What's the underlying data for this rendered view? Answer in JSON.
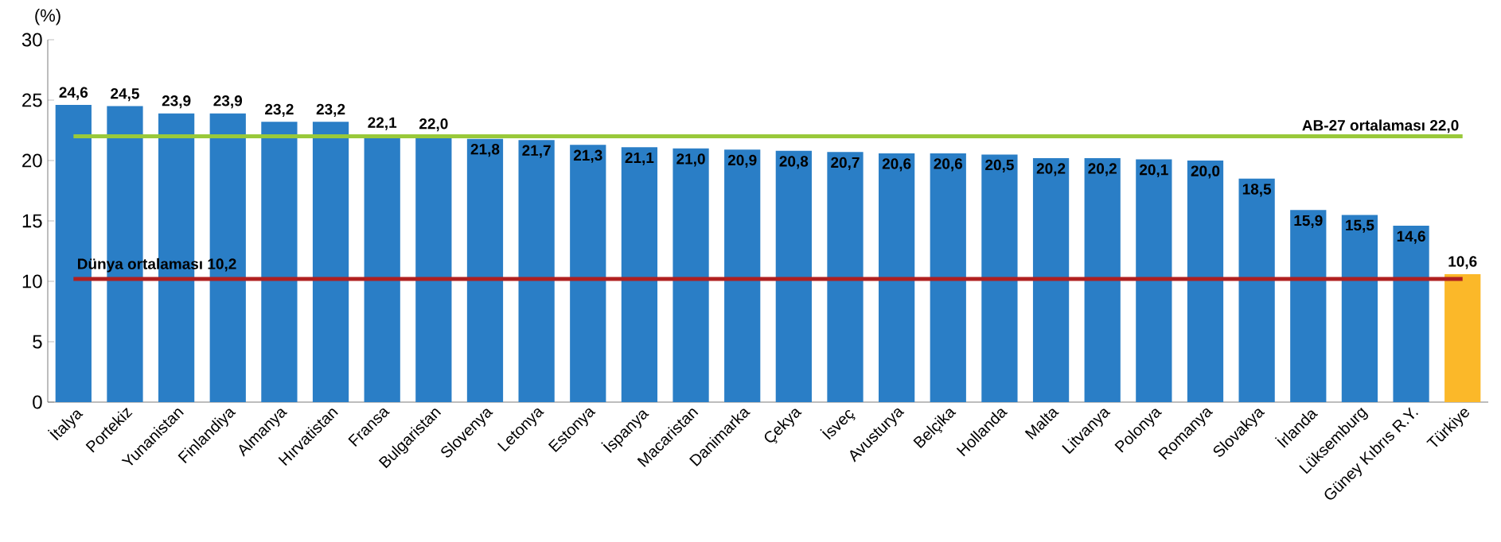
{
  "chart_data": {
    "type": "bar",
    "ylabel": "(%)",
    "categories": [
      "İtalya",
      "Portekiz",
      "Yunanistan",
      "Finlandiya",
      "Almanya",
      "Hırvatistan",
      "Fransa",
      "Bulgaristan",
      "Slovenya",
      "Letonya",
      "Estonya",
      "İspanya",
      "Macaristan",
      "Danimarka",
      "Çekya",
      "İsveç",
      "Avusturya",
      "Belçika",
      "Hollanda",
      "Malta",
      "Litvanya",
      "Polonya",
      "Romanya",
      "Slovakya",
      "İrlanda",
      "Lüksemburg",
      "Güney Kıbrıs R.Y.",
      "Türkiye"
    ],
    "values": [
      24.6,
      24.5,
      23.9,
      23.9,
      23.2,
      23.2,
      22.1,
      22.0,
      21.8,
      21.7,
      21.3,
      21.1,
      21.0,
      20.9,
      20.8,
      20.7,
      20.6,
      20.6,
      20.5,
      20.2,
      20.2,
      20.1,
      20.0,
      18.5,
      15.9,
      15.5,
      14.6,
      10.6
    ],
    "value_labels": [
      "24,6",
      "24,5",
      "23,9",
      "23,9",
      "23,2",
      "23,2",
      "22,1",
      "22,0",
      "21,8",
      "21,7",
      "21,3",
      "21,1",
      "21,0",
      "20,9",
      "20,8",
      "20,7",
      "20,6",
      "20,6",
      "20,5",
      "20,2",
      "20,2",
      "20,1",
      "20,0",
      "18,5",
      "15,9",
      "15,5",
      "14,6",
      "10,6"
    ],
    "colors": [
      "#2a7ec6",
      "#2a7ec6",
      "#2a7ec6",
      "#2a7ec6",
      "#2a7ec6",
      "#2a7ec6",
      "#2a7ec6",
      "#2a7ec6",
      "#2a7ec6",
      "#2a7ec6",
      "#2a7ec6",
      "#2a7ec6",
      "#2a7ec6",
      "#2a7ec6",
      "#2a7ec6",
      "#2a7ec6",
      "#2a7ec6",
      "#2a7ec6",
      "#2a7ec6",
      "#2a7ec6",
      "#2a7ec6",
      "#2a7ec6",
      "#2a7ec6",
      "#2a7ec6",
      "#2a7ec6",
      "#2a7ec6",
      "#2a7ec6",
      "#fbb829"
    ],
    "ylim": [
      0,
      30
    ],
    "yticks": [
      0,
      5,
      10,
      15,
      20,
      25,
      30
    ],
    "ref_lines": [
      {
        "axis": "y",
        "value": 22.0,
        "label": "AB-27 ortalaması  22,0",
        "color": "#99c93a"
      },
      {
        "axis": "y",
        "value": 10.2,
        "label": "Dünya ortalaması  10,2",
        "color": "#b02020"
      }
    ],
    "grid": false
  }
}
